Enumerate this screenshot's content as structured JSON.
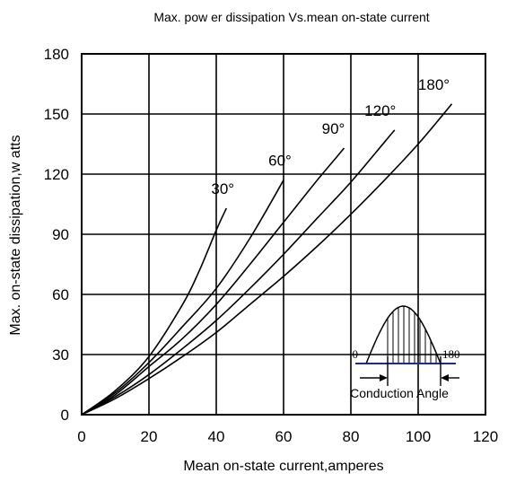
{
  "chart_data": {
    "type": "line",
    "title": "Max. pow er dissipation Vs.mean on-state current",
    "xlabel": "Mean  on-state current,amperes",
    "ylabel": "Max. on-state dissipation,w atts",
    "xlim": [
      0,
      120
    ],
    "ylim": [
      0,
      180
    ],
    "xticks": [
      0,
      20,
      40,
      60,
      80,
      100,
      120
    ],
    "yticks": [
      0,
      30,
      60,
      90,
      120,
      150,
      180
    ],
    "grid": true,
    "series": [
      {
        "name": "30°",
        "points": [
          [
            0,
            0
          ],
          [
            10,
            12
          ],
          [
            20,
            29
          ],
          [
            30,
            55
          ],
          [
            35,
            72
          ],
          [
            40,
            92
          ],
          [
            43,
            103
          ]
        ]
      },
      {
        "name": "60°",
        "points": [
          [
            0,
            0
          ],
          [
            10,
            11
          ],
          [
            20,
            26
          ],
          [
            30,
            44
          ],
          [
            40,
            63
          ],
          [
            50,
            88
          ],
          [
            60,
            117
          ]
        ]
      },
      {
        "name": "90°",
        "points": [
          [
            0,
            0
          ],
          [
            10,
            10
          ],
          [
            20,
            24
          ],
          [
            30,
            38
          ],
          [
            40,
            55
          ],
          [
            50,
            75
          ],
          [
            60,
            96
          ],
          [
            70,
            117
          ],
          [
            75,
            127
          ],
          [
            78,
            133
          ]
        ]
      },
      {
        "name": "120°",
        "points": [
          [
            0,
            0
          ],
          [
            10,
            9
          ],
          [
            20,
            20
          ],
          [
            30,
            33
          ],
          [
            40,
            47
          ],
          [
            50,
            63
          ],
          [
            60,
            80
          ],
          [
            70,
            98
          ],
          [
            80,
            116
          ],
          [
            90,
            136
          ],
          [
            93,
            142
          ]
        ]
      },
      {
        "name": "180°",
        "points": [
          [
            0,
            0
          ],
          [
            10,
            8
          ],
          [
            20,
            18
          ],
          [
            30,
            29
          ],
          [
            40,
            41
          ],
          [
            50,
            55
          ],
          [
            60,
            69
          ],
          [
            70,
            84
          ],
          [
            80,
            100
          ],
          [
            90,
            117
          ],
          [
            100,
            135
          ],
          [
            110,
            155
          ]
        ]
      }
    ],
    "inset": {
      "conduction_label": "Conduction Angle",
      "angle_start": "0",
      "angle_end": "180"
    },
    "colors": {
      "line": "#000000",
      "baseline": "#1f2a8c"
    }
  }
}
